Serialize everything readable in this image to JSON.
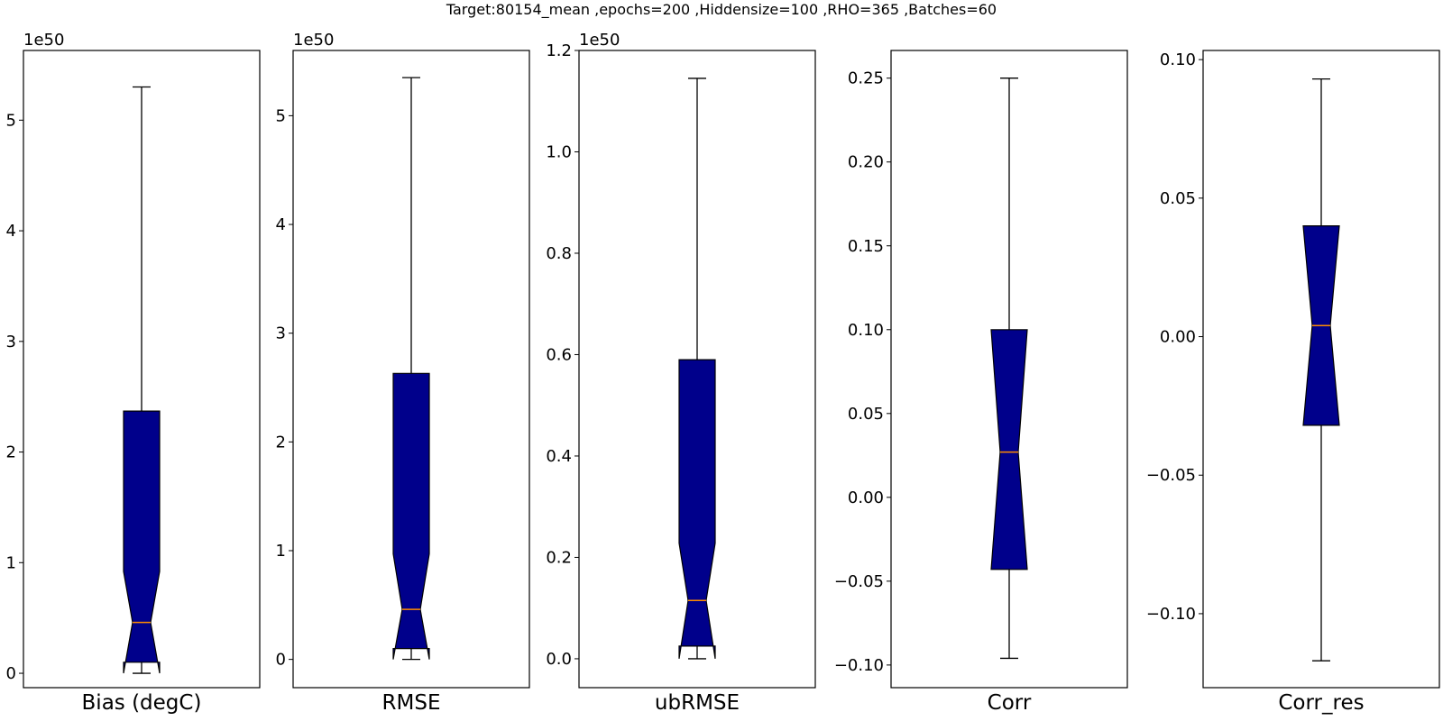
{
  "suptitle": "Target:80154_mean ,epochs=200 ,Hiddensize=100 ,RHO=365 ,Batches=60",
  "colors": {
    "box_fill": "#00008b",
    "median": "#ff8c00",
    "line": "#000000"
  },
  "chart_data": [
    {
      "type": "box",
      "xlabel": "Bias (degC)",
      "offset_text": "1e50",
      "ylim": [
        -0.13,
        5.63
      ],
      "yticks": [
        0,
        1,
        2,
        3,
        4,
        5
      ],
      "tick_labels": [
        "0",
        "1",
        "2",
        "3",
        "4",
        "5"
      ],
      "box": {
        "whisker_low": 0.0,
        "q1": 0.1,
        "median": 0.46,
        "q3": 2.37,
        "whisker_high": 5.3,
        "notch_low": 0.0,
        "notch_high": 0.92
      }
    },
    {
      "type": "box",
      "xlabel": "RMSE",
      "offset_text": "1e50",
      "ylim": [
        -0.26,
        5.6
      ],
      "yticks": [
        0,
        1,
        2,
        3,
        4,
        5
      ],
      "tick_labels": [
        "0",
        "1",
        "2",
        "3",
        "4",
        "5"
      ],
      "box": {
        "whisker_low": 0.0,
        "q1": 0.1,
        "median": 0.46,
        "q3": 2.63,
        "whisker_high": 5.35,
        "notch_low": 0.0,
        "notch_high": 0.97
      }
    },
    {
      "type": "box",
      "xlabel": "ubRMSE",
      "offset_text": "1e50",
      "ylim": [
        -0.057,
        1.2
      ],
      "yticks": [
        0.0,
        0.2,
        0.4,
        0.6,
        0.8,
        1.0,
        1.2
      ],
      "tick_labels": [
        "0.0",
        "0.2",
        "0.4",
        "0.6",
        "0.8",
        "1.0",
        "1.2"
      ],
      "box": {
        "whisker_low": 0.0,
        "q1": 0.025,
        "median": 0.115,
        "q3": 0.59,
        "whisker_high": 1.145,
        "notch_low": 0.0,
        "notch_high": 0.228
      }
    },
    {
      "type": "box",
      "xlabel": "Corr",
      "ylim": [
        -0.1135,
        0.2665
      ],
      "yticks": [
        -0.1,
        -0.05,
        0.0,
        0.05,
        0.1,
        0.15,
        0.2,
        0.25
      ],
      "tick_labels": [
        "−0.10",
        "−0.05",
        "0.00",
        "0.05",
        "0.10",
        "0.15",
        "0.20",
        "0.25"
      ],
      "box": {
        "whisker_low": -0.096,
        "q1": -0.043,
        "median": 0.027,
        "q3": 0.1,
        "whisker_high": 0.25,
        "notch_low": -0.043,
        "notch_high": 0.1
      }
    },
    {
      "type": "box",
      "xlabel": "Corr_res",
      "ylim": [
        -0.1267,
        0.1033
      ],
      "yticks": [
        -0.1,
        -0.05,
        0.0,
        0.05,
        0.1
      ],
      "tick_labels": [
        "−0.10",
        "−0.05",
        "0.00",
        "0.05",
        "0.10"
      ],
      "box": {
        "whisker_low": -0.117,
        "q1": -0.032,
        "median": 0.004,
        "q3": 0.04,
        "whisker_high": 0.093,
        "notch_low": -0.032,
        "notch_high": 0.04
      }
    }
  ]
}
